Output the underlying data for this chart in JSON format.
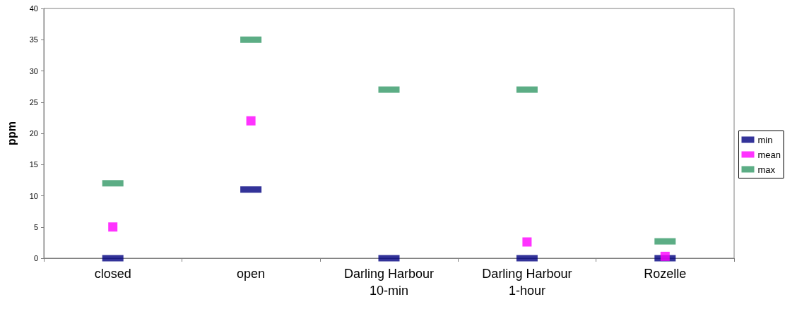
{
  "chart_data": {
    "type": "scatter",
    "ylabel": "ppm",
    "categories": [
      "closed",
      "open",
      "Darling Harbour\n10-min",
      "Darling Harbour\n1-hour",
      "Rozelle"
    ],
    "series": [
      {
        "name": "min",
        "color": "#000080",
        "marker": "square",
        "values": [
          0,
          11,
          0,
          0,
          0
        ]
      },
      {
        "name": "mean",
        "color": "#ff00ff",
        "marker": "square",
        "values": [
          5,
          22,
          null,
          2.6,
          0.3
        ]
      },
      {
        "name": "max",
        "color": "#339966",
        "marker": "square",
        "values": [
          12,
          35,
          27,
          27,
          2.7
        ]
      }
    ],
    "ylim": [
      0,
      40
    ],
    "yticks": [
      0,
      5,
      10,
      15,
      20,
      25,
      30,
      35,
      40
    ],
    "grid": false,
    "legend": "right"
  }
}
